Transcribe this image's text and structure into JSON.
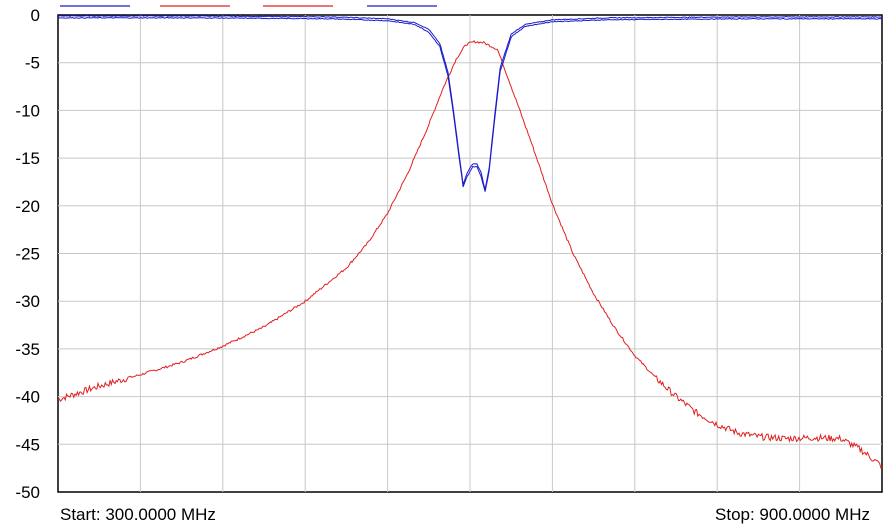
{
  "start_label": "Start: 300.0000 MHz",
  "stop_label": "Stop: 900.0000 MHz",
  "chart_data": {
    "type": "line",
    "title": "",
    "xlabel": "",
    "ylabel": "",
    "xlim": [
      300,
      900
    ],
    "ylim": [
      -50,
      0
    ],
    "x_unit": "MHz",
    "grid": true,
    "x_divisions": 10,
    "yticks": [
      0,
      -5,
      -10,
      -15,
      -20,
      -25,
      -30,
      -35,
      -40,
      -45,
      -50
    ],
    "ytick_labels": [
      "0",
      "-5",
      "-10",
      "-15",
      "-20",
      "-25",
      "-30",
      "-35",
      "-40",
      "-45",
      "-50"
    ],
    "legend_markers": [
      {
        "color": "#1a1acc"
      },
      {
        "color": "#e02020"
      },
      {
        "color": "#e02020"
      },
      {
        "color": "#1a1acc"
      }
    ],
    "series": [
      {
        "color": "#e02020",
        "x": [
          300,
          330,
          360,
          390,
          420,
          450,
          480,
          510,
          525,
          540,
          555,
          570,
          580,
          590,
          597,
          603,
          610,
          620,
          630,
          645,
          660,
          675,
          690,
          705,
          720,
          735,
          750,
          765,
          780,
          795,
          810,
          830,
          850,
          870,
          885,
          900
        ],
        "y": [
          -40.3,
          -38.9,
          -37.7,
          -36.4,
          -34.7,
          -32.7,
          -30.0,
          -26.5,
          -24.0,
          -20.8,
          -16.5,
          -11.5,
          -7.8,
          -4.6,
          -3.1,
          -2.8,
          -2.9,
          -3.6,
          -7.5,
          -13.5,
          -19.8,
          -25.0,
          -29.2,
          -32.7,
          -35.7,
          -38.0,
          -40.0,
          -41.7,
          -42.9,
          -43.8,
          -44.2,
          -44.4,
          -44.3,
          -44.4,
          -45.6,
          -47.3
        ]
      },
      {
        "color": "#1a1acc",
        "x": [
          300,
          400,
          500,
          540,
          560,
          570,
          578,
          584,
          588,
          592,
          595,
          598,
          602,
          605,
          608,
          611,
          614,
          618,
          622,
          630,
          640,
          660,
          700,
          800,
          900
        ],
        "y": [
          -0.1,
          -0.1,
          -0.2,
          -0.4,
          -0.8,
          -1.5,
          -3.0,
          -6.0,
          -10.0,
          -14.5,
          -17.8,
          -16.5,
          -15.6,
          -15.6,
          -16.5,
          -18.3,
          -16.0,
          -10.5,
          -5.5,
          -2.0,
          -1.0,
          -0.5,
          -0.3,
          -0.2,
          -0.2
        ]
      },
      {
        "color": "#1a1acc",
        "x": [
          300,
          400,
          500,
          540,
          560,
          570,
          578,
          584,
          588,
          592,
          595,
          598,
          602,
          605,
          608,
          611,
          614,
          618,
          622,
          630,
          640,
          660,
          700,
          800,
          900
        ],
        "y": [
          -0.3,
          -0.3,
          -0.4,
          -0.6,
          -1.0,
          -1.8,
          -3.3,
          -6.4,
          -10.4,
          -14.9,
          -18.0,
          -16.9,
          -15.9,
          -15.9,
          -16.9,
          -18.5,
          -16.3,
          -10.9,
          -5.9,
          -2.3,
          -1.2,
          -0.7,
          -0.5,
          -0.4,
          -0.4
        ]
      }
    ]
  }
}
